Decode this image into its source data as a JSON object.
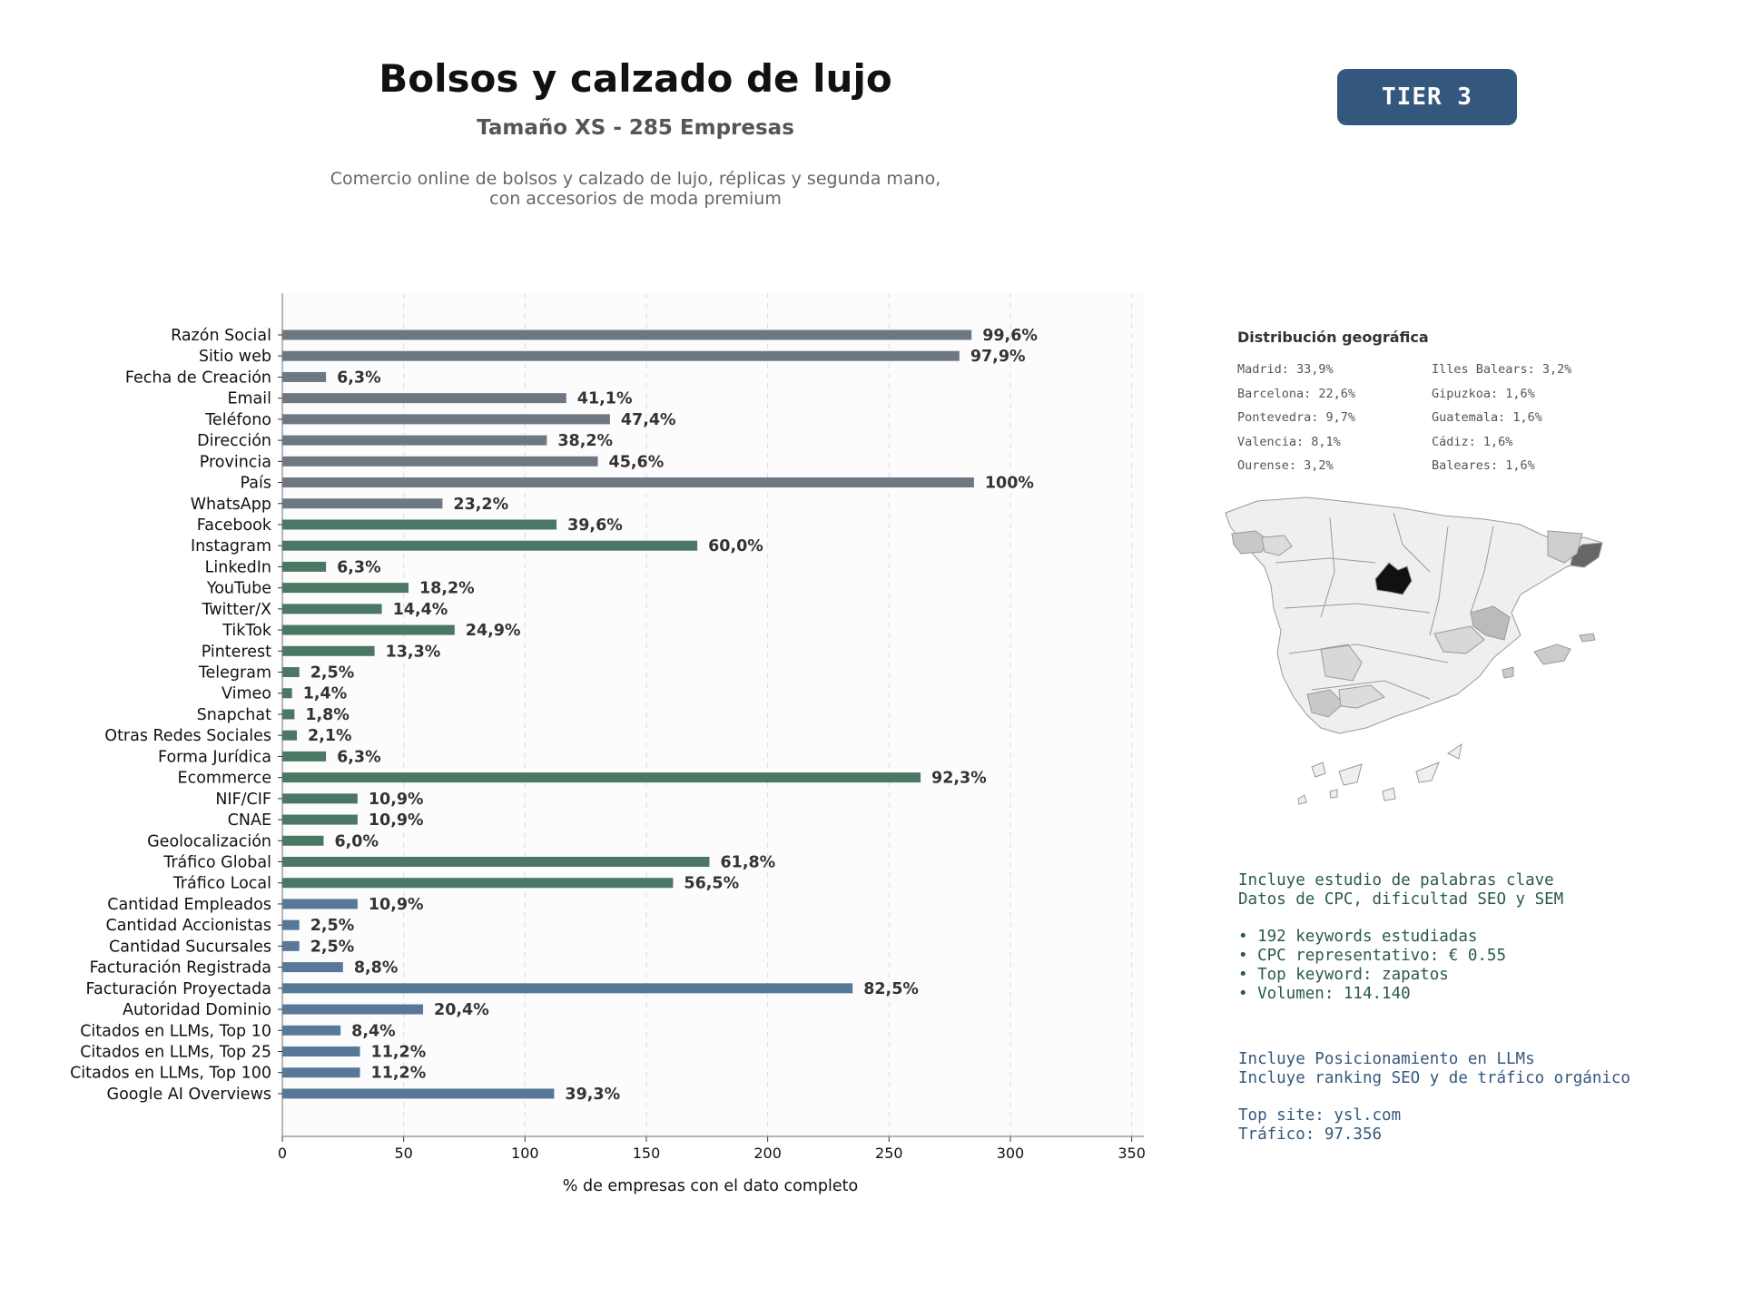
{
  "header": {
    "title": "Bolsos y calzado de lujo",
    "subtitle": "Tamaño XS - 285 Empresas",
    "description_line1": "Comercio online de bolsos y calzado de lujo, réplicas y segunda mano,",
    "description_line2": "con accesorios de moda premium",
    "tier_badge": "TIER 3"
  },
  "chart_data": {
    "type": "bar",
    "orientation": "horizontal",
    "xlabel": "% de empresas con el dato completo",
    "xlim": [
      0,
      355
    ],
    "xticks": [
      0,
      50,
      100,
      150,
      200,
      250,
      300,
      350
    ],
    "grid": "vertical dashed",
    "categories": [
      "Razón Social",
      "Sitio web",
      "Fecha de Creación",
      "Email",
      "Teléfono",
      "Dirección",
      "Provincia",
      "País",
      "WhatsApp",
      "Facebook",
      "Instagram",
      "LinkedIn",
      "YouTube",
      "Twitter/X",
      "TikTok",
      "Pinterest",
      "Telegram",
      "Vimeo",
      "Snapchat",
      "Otras Redes Sociales",
      "Forma Jurídica",
      "Ecommerce",
      "NIF/CIF",
      "CNAE",
      "Geolocalización",
      "Tráfico Global",
      "Tráfico Local",
      "Cantidad Empleados",
      "Cantidad Accionistas",
      "Cantidad Sucursales",
      "Facturación Registrada",
      "Facturación Proyectada",
      "Autoridad Dominio",
      "Citados en LLMs, Top 10",
      "Citados en LLMs, Top 25",
      "Citados en LLMs, Top 100",
      "Google AI Overviews"
    ],
    "values": [
      284,
      279,
      18,
      117,
      135,
      109,
      130,
      285,
      66,
      113,
      171,
      18,
      52,
      41,
      71,
      38,
      7,
      4,
      5,
      6,
      18,
      263,
      31,
      31,
      17,
      176,
      161,
      31,
      7,
      7,
      25,
      235,
      58,
      24,
      32,
      32,
      112
    ],
    "labels": [
      "99,6%",
      "97,9%",
      "6,3%",
      "41,1%",
      "47,4%",
      "38,2%",
      "45,6%",
      "100%",
      "23,2%",
      "39,6%",
      "60,0%",
      "6,3%",
      "18,2%",
      "14,4%",
      "24,9%",
      "13,3%",
      "2,5%",
      "1,4%",
      "1,8%",
      "2,1%",
      "6,3%",
      "92,3%",
      "10,9%",
      "10,9%",
      "6,0%",
      "61,8%",
      "56,5%",
      "10,9%",
      "2,5%",
      "2,5%",
      "8,8%",
      "82,5%",
      "20,4%",
      "8,4%",
      "11,2%",
      "11,2%",
      "39,3%"
    ],
    "groups": [
      "basic",
      "basic",
      "basic",
      "basic",
      "basic",
      "basic",
      "basic",
      "basic",
      "basic",
      "digital",
      "digital",
      "digital",
      "digital",
      "digital",
      "digital",
      "digital",
      "digital",
      "digital",
      "digital",
      "digital",
      "digital",
      "digital",
      "digital",
      "digital",
      "digital",
      "digital",
      "digital",
      "business",
      "business",
      "business",
      "business",
      "business",
      "business",
      "business",
      "business",
      "business",
      "business"
    ],
    "colors": {
      "basic": "#6e7883",
      "digital": "#4a7865",
      "business": "#58789a"
    }
  },
  "geo": {
    "title": "Distribución geográfica",
    "items": [
      "Madrid: 33,9%",
      "Illes Balears: 3,2%",
      "Barcelona: 22,6%",
      "Gipuzkoa: 1,6%",
      "Pontevedra: 9,7%",
      "Guatemala: 1,6%",
      "Valencia: 8,1%",
      "Cádiz: 1,6%",
      "Ourense: 3,2%",
      "Baleares: 1,6%"
    ]
  },
  "keywords": {
    "line1": "Incluye estudio de palabras clave",
    "line2": "Datos de CPC, dificultad SEO y SEM",
    "bullet1": "• 192 keywords estudiadas",
    "bullet2": "• CPC representativo: € 0.55",
    "bullet3": "• Top keyword: zapatos",
    "bullet4": "• Volumen: 114.140"
  },
  "llm": {
    "line1": "Incluye Posicionamiento en LLMs",
    "line2": "Incluye ranking SEO y de tráfico orgánico",
    "top_site": "Top site: ysl.com",
    "traffic": "Tráfico: 97.356"
  }
}
